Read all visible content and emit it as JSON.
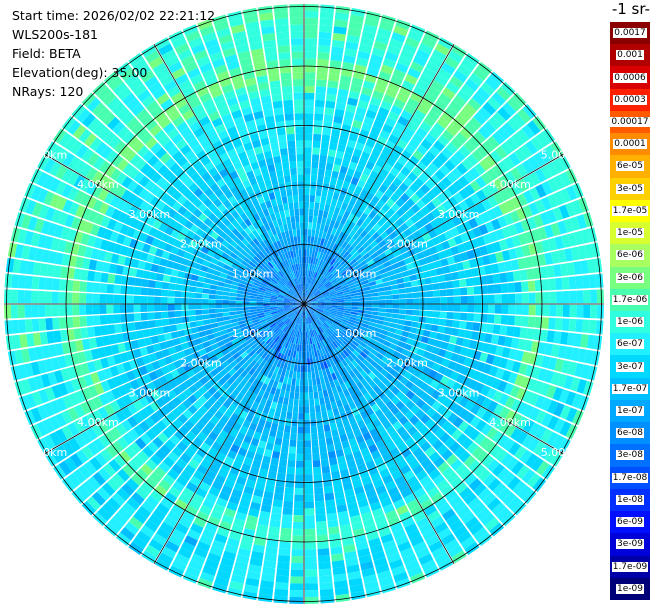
{
  "header": {
    "start_time": "Start time: 2026/02/02 22:21:12",
    "instrument": "WLS200s-181",
    "field": "Field: BETA",
    "elevation": "Elevation(deg): 35.00",
    "nrays": "NRays: 120"
  },
  "colorbar": {
    "title": "-1 sr-",
    "labels": [
      "0.0017",
      "0.001",
      "0.0006",
      "0.0003",
      "0.00017",
      "0.0001",
      "6e-05",
      "3e-05",
      "1.7e-05",
      "1e-05",
      "6e-06",
      "3e-06",
      "1.7e-06",
      "1e-06",
      "6e-07",
      "3e-07",
      "1.7e-07",
      "1e-07",
      "6e-08",
      "3e-08",
      "1.7e-08",
      "1e-08",
      "6e-09",
      "3e-09",
      "1.7e-09",
      "1e-09"
    ],
    "colors": [
      "#8b0000",
      "#b00000",
      "#d80000",
      "#ff2000",
      "#ff5a00",
      "#ff8c00",
      "#ffb000",
      "#ffd000",
      "#ffff00",
      "#d8ff30",
      "#a8ff60",
      "#78ff80",
      "#48ffb0",
      "#30ffe0",
      "#20f0ff",
      "#00d8ff",
      "#00c0ff",
      "#00a8ff",
      "#0090ff",
      "#0070ff",
      "#0050ff",
      "#0030ff",
      "#0010ff",
      "#0000d8",
      "#0000a8",
      "#000078"
    ]
  },
  "range_rings": [
    "1.00km",
    "2.00km",
    "3.00km",
    "4.00km",
    "5.00km"
  ]
}
